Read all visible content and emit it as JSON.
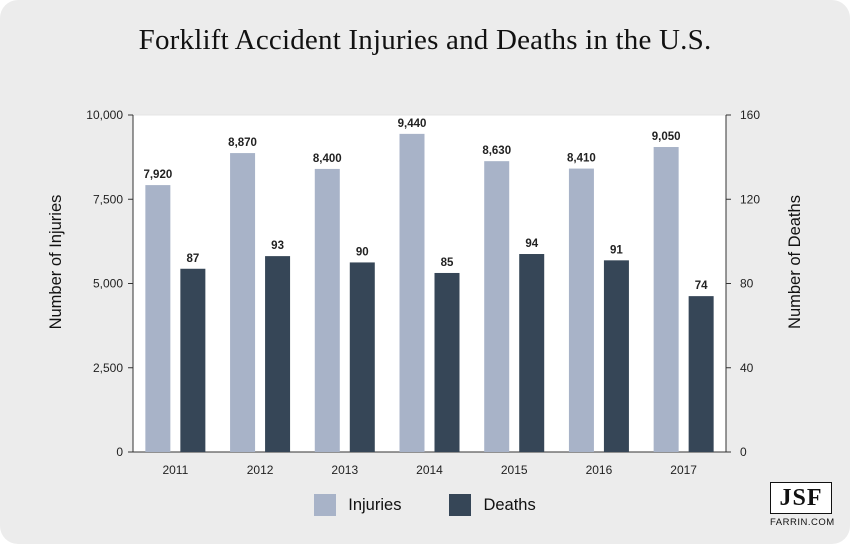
{
  "chart_data": {
    "type": "bar",
    "title": "Forklift Accident Injuries and Deaths in the U.S.",
    "categories": [
      "2011",
      "2012",
      "2013",
      "2014",
      "2015",
      "2016",
      "2017"
    ],
    "series": [
      {
        "name": "Injuries",
        "axis": "left",
        "color": "#a8b3c8",
        "values": [
          7920,
          8870,
          8400,
          9440,
          8630,
          8410,
          9050
        ],
        "labels": [
          "7,920",
          "8,870",
          "8,400",
          "9,440",
          "8,630",
          "8,410",
          "9,050"
        ]
      },
      {
        "name": "Deaths",
        "axis": "right",
        "color": "#364657",
        "values": [
          87,
          93,
          90,
          85,
          94,
          91,
          74
        ],
        "labels": [
          "87",
          "93",
          "90",
          "85",
          "94",
          "91",
          "74"
        ]
      }
    ],
    "y_left": {
      "label": "Number of Injuries",
      "range": [
        0,
        10000
      ],
      "ticks": [
        0,
        2500,
        5000,
        7500,
        10000
      ],
      "tick_labels": [
        "0",
        "2,500",
        "5,000",
        "7,500",
        "10,000"
      ]
    },
    "y_right": {
      "label": "Number of Deaths",
      "range": [
        0,
        160
      ],
      "ticks": [
        0,
        40,
        80,
        120,
        160
      ],
      "tick_labels": [
        "0",
        "40",
        "80",
        "120",
        "160"
      ]
    },
    "grid": false,
    "legend": [
      "Injuries",
      "Deaths"
    ],
    "legend_position": "bottom-center"
  },
  "logo": {
    "mark": "JSF",
    "subtext": "FARRIN.COM"
  }
}
